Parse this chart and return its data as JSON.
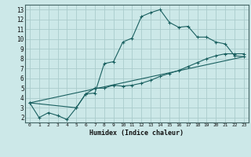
{
  "xlabel": "Humidex (Indice chaleur)",
  "bg_color": "#cce8e8",
  "grid_color": "#aacccc",
  "line_color": "#1a6060",
  "line1_x": [
    0,
    1,
    2,
    3,
    4,
    5,
    6,
    7,
    8,
    9,
    10,
    11,
    12,
    13,
    14,
    15,
    16,
    17,
    18,
    19,
    20,
    21,
    22,
    23
  ],
  "line1_y": [
    3.5,
    2.0,
    2.5,
    2.2,
    1.8,
    3.0,
    4.4,
    4.5,
    7.5,
    7.7,
    9.7,
    10.1,
    12.3,
    12.7,
    13.0,
    11.7,
    11.2,
    11.3,
    10.2,
    10.2,
    9.7,
    9.5,
    8.3,
    8.2
  ],
  "line2_x": [
    0,
    5,
    6,
    7,
    8,
    9,
    10,
    11,
    12,
    13,
    14,
    15,
    16,
    17,
    18,
    19,
    20,
    21,
    22,
    23
  ],
  "line2_y": [
    3.5,
    3.0,
    4.4,
    5.0,
    5.0,
    5.3,
    5.2,
    5.3,
    5.5,
    5.8,
    6.2,
    6.5,
    6.8,
    7.2,
    7.6,
    8.0,
    8.3,
    8.5,
    8.5,
    8.5
  ],
  "line3_x": [
    0,
    23
  ],
  "line3_y": [
    3.5,
    8.2
  ],
  "xlim": [
    -0.5,
    23.5
  ],
  "ylim": [
    1.5,
    13.5
  ],
  "yticks": [
    2,
    3,
    4,
    5,
    6,
    7,
    8,
    9,
    10,
    11,
    12,
    13
  ],
  "xticks": [
    0,
    1,
    2,
    3,
    4,
    5,
    6,
    7,
    8,
    9,
    10,
    11,
    12,
    13,
    14,
    15,
    16,
    17,
    18,
    19,
    20,
    21,
    22,
    23
  ]
}
